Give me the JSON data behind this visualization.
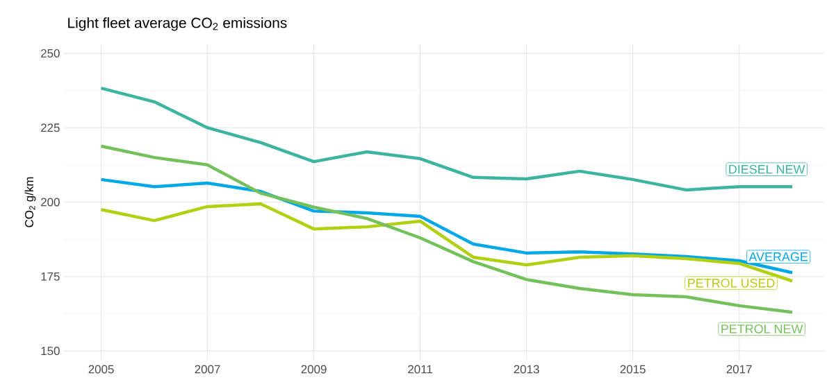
{
  "chart_data": {
    "type": "line",
    "title": "Light fleet average CO$_{2}$ emissions",
    "ylabel": "CO$_{2}$ g/km",
    "x": [
      2005,
      2006,
      2007,
      2008,
      2009,
      2010,
      2011,
      2012,
      2013,
      2014,
      2015,
      2016,
      2017,
      2018
    ],
    "series": [
      {
        "name": "DIESEL NEW",
        "color": "#3cb4a0",
        "values": [
          238.3,
          233.7,
          225,
          220,
          213.6,
          216.9,
          214.6,
          208.3,
          207.8,
          210.4,
          207.6,
          204.1,
          205.2,
          205.2
        ]
      },
      {
        "name": "AVERAGE",
        "color": "#00a8e8",
        "values": [
          207.6,
          205.2,
          206.4,
          203.6,
          197,
          196.4,
          195.2,
          185.9,
          182.9,
          183.3,
          182.6,
          181.7,
          180.3,
          176.3
        ]
      },
      {
        "name": "PETROL USED",
        "color": "#b2cf12",
        "values": [
          197.5,
          193.8,
          198.5,
          199.4,
          191,
          191.7,
          193.6,
          181.5,
          178.9,
          181.5,
          182,
          181,
          179.4,
          173.5
        ]
      },
      {
        "name": "PETROL NEW",
        "color": "#74c05a",
        "values": [
          218.8,
          215,
          212.5,
          203,
          198.3,
          194.5,
          188,
          180,
          174,
          171,
          168.9,
          168.2,
          165.2,
          163
        ]
      }
    ],
    "xlim": [
      2004.3,
      2018.6
    ],
    "ylim": [
      147,
      253
    ],
    "xticks": [
      2005,
      2007,
      2009,
      2011,
      2013,
      2015,
      2017
    ],
    "yticks": [
      150,
      175,
      200,
      225,
      250
    ],
    "grid": true,
    "legend": "right"
  }
}
